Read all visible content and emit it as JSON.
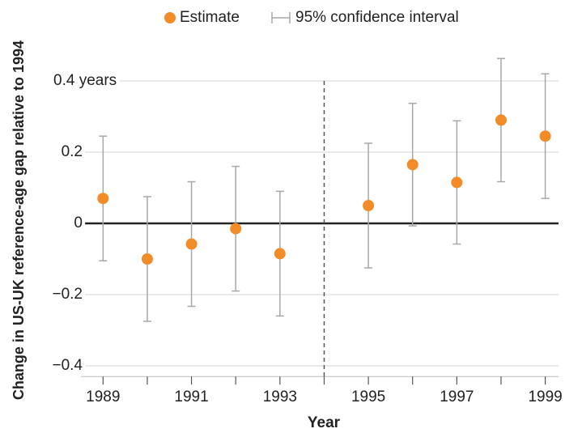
{
  "chart_data": {
    "type": "errorbar",
    "x_label": "Year",
    "y_label": "Change in US-UK reference-age gap relative to 1994",
    "x": [
      1989,
      1990,
      1991,
      1992,
      1993,
      1995,
      1996,
      1997,
      1998,
      1999
    ],
    "series": [
      {
        "name": "Estimate",
        "color": "#f28c28",
        "values": [
          0.07,
          -0.1,
          -0.058,
          -0.015,
          -0.085,
          0.05,
          0.165,
          0.115,
          0.29,
          0.245
        ],
        "errors": [
          0.175,
          0.175,
          0.175,
          0.175,
          0.175,
          0.175,
          0.172,
          0.173,
          0.173,
          0.175
        ],
        "error_name": "95% confidence interval",
        "error_color": "#a8a8a8"
      }
    ],
    "xlim": [
      1988.5,
      1999.3
    ],
    "ylim": [
      -0.43,
      0.47
    ],
    "xticks": [
      1989,
      1991,
      1993,
      1995,
      1997,
      1999
    ],
    "xminorticks": [
      1990,
      1992,
      1994,
      1996,
      1998
    ],
    "yticks": [
      {
        "value": -0.4,
        "label": "−0.4"
      },
      {
        "value": -0.2,
        "label": "−0.2"
      },
      0,
      0.2,
      {
        "value": 0.4,
        "label": "0.4 years"
      }
    ],
    "vline": 1994,
    "grid": true
  }
}
